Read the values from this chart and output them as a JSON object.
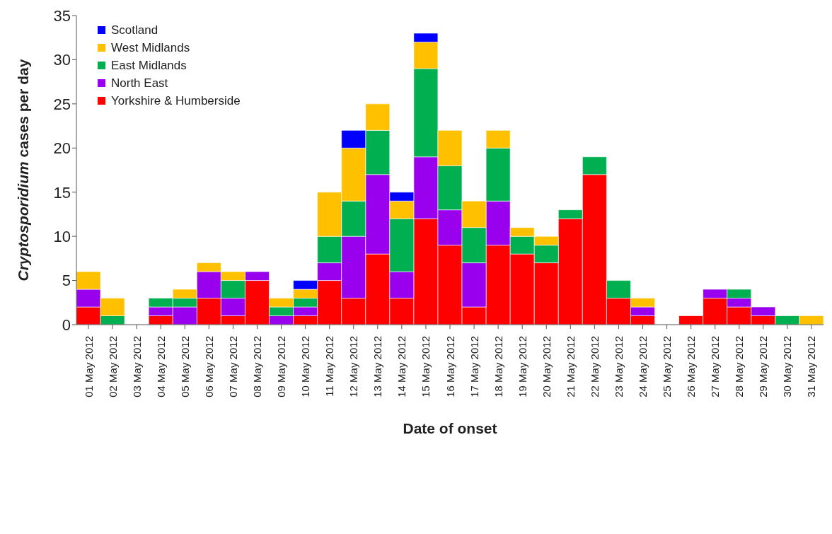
{
  "chart_data": {
    "type": "bar",
    "stacked": true,
    "xlabel": "Date of onset",
    "ylabel": "Cryptosporidium cases per day",
    "categories": [
      "01 May 2012",
      "02 May 2012",
      "03 May 2012",
      "04 May 2012",
      "05 May 2012",
      "06 May 2012",
      "07 May 2012",
      "08 May 2012",
      "09 May 2012",
      "10 May 2012",
      "11 May 2012",
      "12 May 2012",
      "13 May 2012",
      "14 May 2012",
      "15 May 2012",
      "16 May 2012",
      "17 May 2012",
      "18 May 2012",
      "19 May 2012",
      "20 May 2012",
      "21 May 2012",
      "22 May 2012",
      "23 May 2012",
      "24 May 2012",
      "25 May 2012",
      "26 May 2012",
      "27 May 2012",
      "28 May 2012",
      "29 May 2012",
      "30 May 2012",
      "31 May 2012"
    ],
    "series": [
      {
        "name": "Yorkshire & Humberside",
        "color": "#ff0000",
        "values": [
          2,
          0,
          0,
          1,
          0,
          3,
          1,
          5,
          0,
          1,
          5,
          3,
          8,
          3,
          12,
          9,
          2,
          9,
          8,
          7,
          12,
          17,
          3,
          1,
          0,
          1,
          3,
          2,
          1,
          0,
          0
        ]
      },
      {
        "name": "North East",
        "color": "#9900ee",
        "values": [
          2,
          0,
          0,
          1,
          2,
          3,
          2,
          1,
          1,
          1,
          2,
          7,
          9,
          3,
          7,
          4,
          5,
          5,
          0,
          0,
          0,
          0,
          0,
          1,
          0,
          0,
          1,
          1,
          1,
          0,
          0
        ]
      },
      {
        "name": "East Midlands",
        "color": "#00b050",
        "values": [
          0,
          1,
          0,
          1,
          1,
          0,
          2,
          0,
          1,
          1,
          3,
          4,
          5,
          6,
          10,
          5,
          4,
          6,
          2,
          2,
          1,
          2,
          2,
          0,
          0,
          0,
          0,
          1,
          0,
          1,
          0
        ]
      },
      {
        "name": "West Midlands",
        "color": "#ffc000",
        "values": [
          2,
          2,
          0,
          0,
          1,
          1,
          1,
          0,
          1,
          1,
          5,
          6,
          3,
          2,
          3,
          4,
          3,
          2,
          1,
          1,
          0,
          0,
          0,
          1,
          0,
          0,
          0,
          0,
          0,
          0,
          1
        ]
      },
      {
        "name": "Scotland",
        "color": "#0000ff",
        "values": [
          0,
          0,
          0,
          0,
          0,
          0,
          0,
          0,
          0,
          1,
          0,
          2,
          0,
          1,
          1,
          0,
          0,
          0,
          0,
          0,
          0,
          0,
          0,
          0,
          0,
          0,
          0,
          0,
          0,
          0,
          0
        ]
      }
    ],
    "ylim": [
      0,
      35
    ],
    "yticks": [
      0,
      5,
      10,
      15,
      20,
      25,
      30,
      35
    ],
    "grid": false,
    "legend": "top left"
  }
}
